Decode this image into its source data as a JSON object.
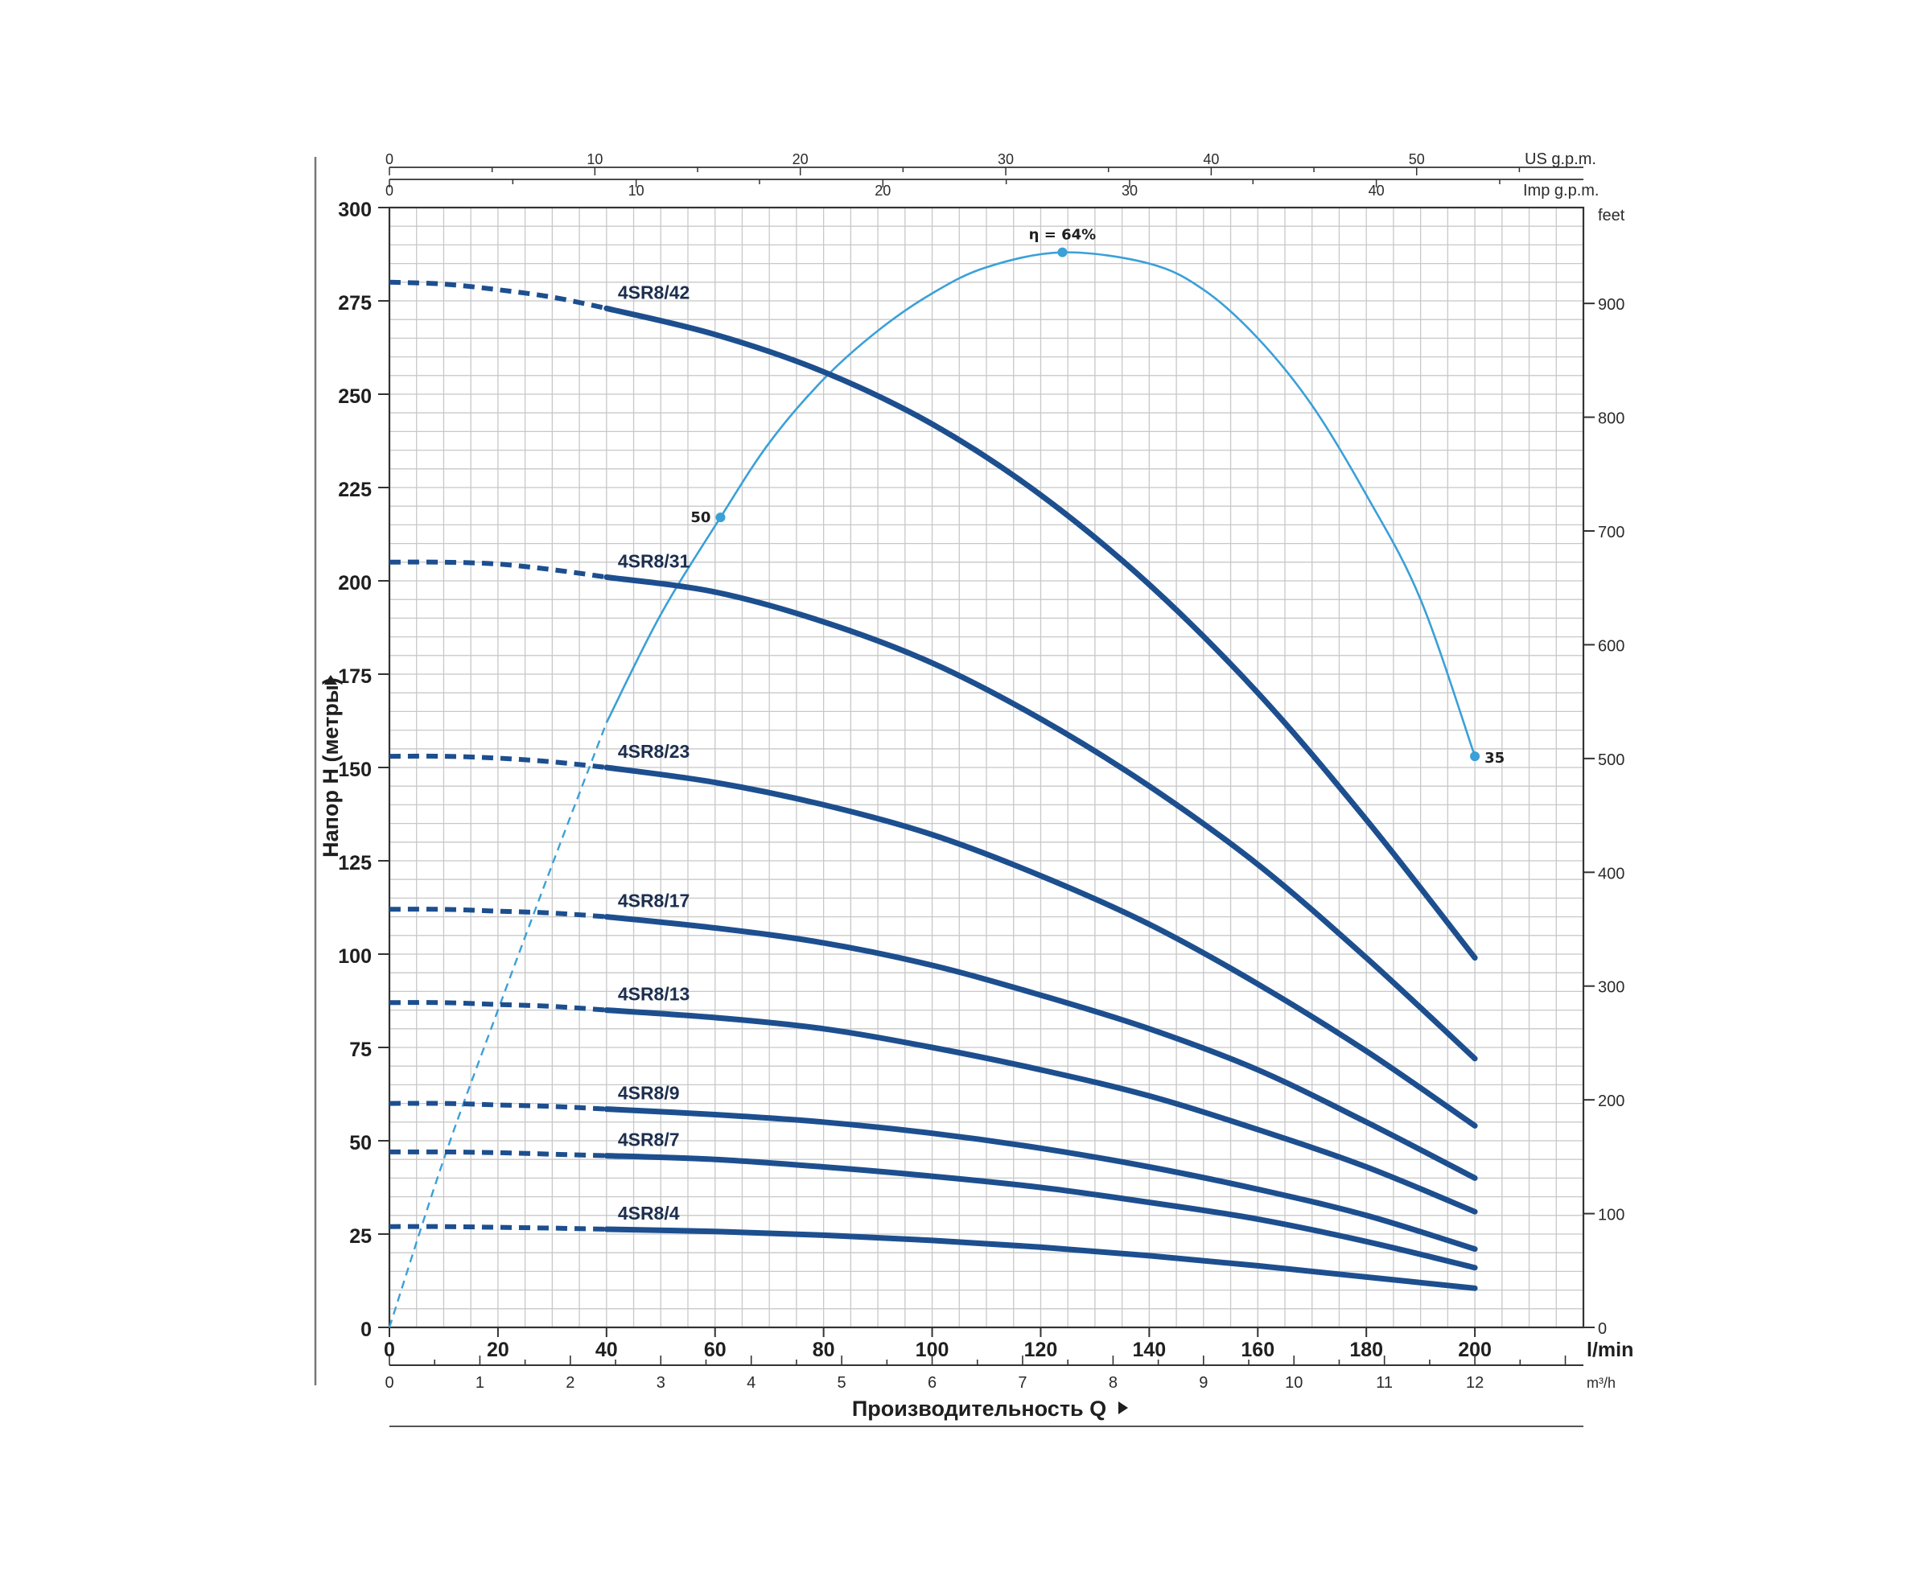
{
  "chart_data": {
    "type": "line",
    "x_unit": "l/min",
    "y_unit_left": "meters",
    "xlim": [
      0,
      220
    ],
    "ylim": [
      0,
      300
    ],
    "grid": true,
    "xlabel": "Производительность Q",
    "ylabel": "Напор H (метры)",
    "axes": {
      "bottom_lmin": {
        "unit_label": "l/min",
        "ticks": [
          "0",
          "20",
          "40",
          "60",
          "80",
          "100",
          "120",
          "140",
          "160",
          "180",
          "200"
        ]
      },
      "bottom_m3h": {
        "unit_label": "m³/h",
        "ticks": [
          "0",
          "1",
          "2",
          "3",
          "4",
          "5",
          "6",
          "7",
          "8",
          "9",
          "10",
          "11",
          "12"
        ]
      },
      "top_us_gpm": {
        "unit_label": "US g.p.m.",
        "ticks": [
          "0",
          "10",
          "20",
          "30",
          "40",
          "50"
        ]
      },
      "top_imp_gpm": {
        "unit_label": "Imp g.p.m.",
        "ticks": [
          "0",
          "10",
          "20",
          "30",
          "40"
        ]
      },
      "left_m": {
        "ticks": [
          "0",
          "25",
          "50",
          "75",
          "100",
          "125",
          "150",
          "175",
          "200",
          "225",
          "250",
          "275",
          "300"
        ]
      },
      "right_feet": {
        "unit_label": "feet",
        "ticks": [
          "0",
          "100",
          "200",
          "300",
          "400",
          "500",
          "600",
          "700",
          "800",
          "900"
        ]
      }
    },
    "series": [
      {
        "name": "4SR8/42",
        "dashed_x": [
          0,
          10,
          20,
          30,
          40
        ],
        "dashed_y": [
          280,
          279.5,
          278,
          276,
          273
        ],
        "x": [
          40,
          60,
          80,
          100,
          120,
          140,
          160,
          180,
          200
        ],
        "y": [
          273,
          266,
          256,
          242,
          223,
          199,
          170,
          136,
          99
        ]
      },
      {
        "name": "4SR8/31",
        "dashed_x": [
          0,
          10,
          20,
          30,
          40
        ],
        "dashed_y": [
          205,
          205,
          204.5,
          203,
          201
        ],
        "x": [
          40,
          60,
          80,
          100,
          120,
          140,
          160,
          180,
          200
        ],
        "y": [
          201,
          197,
          189,
          178,
          163,
          145,
          124,
          99,
          72
        ]
      },
      {
        "name": "4SR8/23",
        "dashed_x": [
          0,
          10,
          20,
          30,
          40
        ],
        "dashed_y": [
          153,
          153,
          152.5,
          151.5,
          150
        ],
        "x": [
          40,
          60,
          80,
          100,
          120,
          140,
          160,
          180,
          200
        ],
        "y": [
          150,
          146,
          140,
          132,
          121,
          108,
          92,
          74,
          54
        ]
      },
      {
        "name": "4SR8/17",
        "dashed_x": [
          0,
          10,
          20,
          30,
          40
        ],
        "dashed_y": [
          112,
          112,
          111.5,
          111,
          110
        ],
        "x": [
          40,
          60,
          80,
          100,
          120,
          140,
          160,
          180,
          200
        ],
        "y": [
          110,
          107,
          103,
          97,
          89,
          80,
          69,
          55,
          40
        ]
      },
      {
        "name": "4SR8/13",
        "dashed_x": [
          0,
          10,
          20,
          30,
          40
        ],
        "dashed_y": [
          87,
          87,
          86.5,
          86,
          85
        ],
        "x": [
          40,
          60,
          80,
          100,
          120,
          140,
          160,
          180,
          200
        ],
        "y": [
          85,
          83,
          80,
          75,
          69,
          62,
          53,
          43,
          31
        ]
      },
      {
        "name": "4SR8/9",
        "dashed_x": [
          0,
          10,
          20,
          30,
          40
        ],
        "dashed_y": [
          60,
          60,
          59.6,
          59.2,
          58.5
        ],
        "x": [
          40,
          60,
          80,
          100,
          120,
          140,
          160,
          180,
          200
        ],
        "y": [
          58.5,
          57,
          55,
          52,
          48,
          43,
          37,
          30,
          21
        ]
      },
      {
        "name": "4SR8/7",
        "dashed_x": [
          0,
          10,
          20,
          30,
          40
        ],
        "dashed_y": [
          47,
          47,
          46.8,
          46.4,
          46
        ],
        "x": [
          40,
          60,
          80,
          100,
          120,
          140,
          160,
          180,
          200
        ],
        "y": [
          46,
          45,
          43,
          40.5,
          37.5,
          33.5,
          29,
          23,
          16
        ]
      },
      {
        "name": "4SR8/4",
        "dashed_x": [
          0,
          10,
          20,
          30,
          40
        ],
        "dashed_y": [
          27,
          27,
          26.8,
          26.6,
          26.3
        ],
        "x": [
          40,
          60,
          80,
          100,
          120,
          140,
          160,
          180,
          200
        ],
        "y": [
          26.3,
          25.7,
          24.7,
          23.3,
          21.5,
          19.2,
          16.5,
          13.5,
          10.5
        ]
      }
    ],
    "efficiency_curve": {
      "dashed_x": [
        0,
        10,
        20,
        30,
        40
      ],
      "dashed_y_axis_scale": [
        0,
        45,
        85,
        124,
        162
      ],
      "x": [
        40,
        50,
        61,
        70,
        80,
        90,
        100,
        110,
        124,
        140,
        150,
        160,
        170,
        180,
        190,
        200
      ],
      "y_axis_scale": [
        162,
        191,
        217,
        237,
        254,
        267,
        277,
        284,
        288,
        285,
        278,
        265,
        247,
        223,
        195,
        153
      ],
      "markers": [
        {
          "x": 61,
          "y_axis_scale": 217,
          "label": "50"
        },
        {
          "x": 124,
          "y_axis_scale": 288,
          "label": "η = 64%"
        },
        {
          "x": 200,
          "y_axis_scale": 153,
          "label": "35"
        }
      ]
    }
  },
  "colors": {
    "curve": "#1d4f8f",
    "efficiency": "#3aa0d8",
    "grid": "#c8c8c8",
    "axis": "#333333"
  }
}
